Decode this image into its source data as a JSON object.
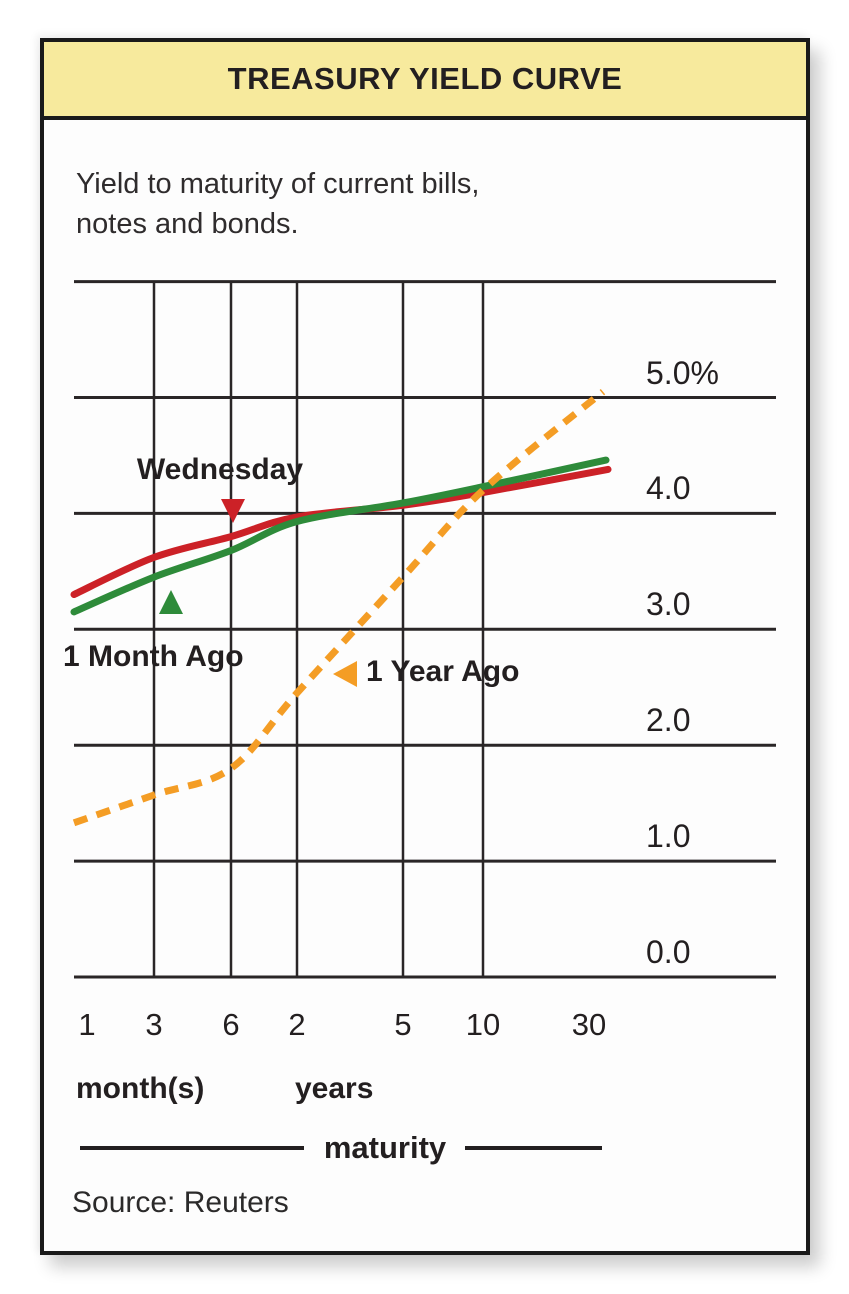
{
  "chart_data": {
    "type": "line",
    "title": "TREASURY YIELD CURVE",
    "subtitle_lines": [
      "Yield to maturity of current bills,",
      "notes and bonds."
    ],
    "x_axis": {
      "title": "maturity",
      "ticks": [
        {
          "label": "1",
          "term": "1 month",
          "group": "months"
        },
        {
          "label": "3",
          "term": "3 months",
          "group": "months"
        },
        {
          "label": "6",
          "term": "6 months",
          "group": "months"
        },
        {
          "label": "2",
          "term": "2 years",
          "group": "years"
        },
        {
          "label": "5",
          "term": "5 years",
          "group": "years"
        },
        {
          "label": "10",
          "term": "10 years",
          "group": "years"
        },
        {
          "label": "30",
          "term": "30 years",
          "group": "years"
        }
      ],
      "unit_labels": [
        {
          "text": "month(s)"
        },
        {
          "text": "years"
        }
      ]
    },
    "y_axis": {
      "unit": "percent yield",
      "range": [
        0.0,
        6.0
      ],
      "ticks": [
        {
          "value": 0,
          "label": "0.0"
        },
        {
          "value": 1,
          "label": "1.0"
        },
        {
          "value": 2,
          "label": "2.0"
        },
        {
          "value": 3,
          "label": "3.0"
        },
        {
          "value": 4,
          "label": "4.0"
        },
        {
          "value": 5,
          "label": "5.0%"
        }
      ]
    },
    "grid": {
      "horizontal": true,
      "vertical_on_ticks": [
        "3",
        "6",
        "2",
        "5",
        "10"
      ],
      "color": "#2a2627"
    },
    "series": [
      {
        "name": "Wednesday",
        "color": "#cc2127",
        "line_style": "solid",
        "marker": "triangle-down",
        "values": [
          3.3,
          3.62,
          3.8,
          3.97,
          4.07,
          4.18,
          4.38
        ]
      },
      {
        "name": "1 Month Ago",
        "color": "#2e8b3a",
        "line_style": "solid",
        "marker": "triangle-up",
        "values": [
          3.15,
          3.45,
          3.68,
          3.93,
          4.09,
          4.23,
          4.46
        ]
      },
      {
        "name": "1 Year Ago",
        "color": "#f49d25",
        "line_style": "dashed",
        "marker": "triangle-left",
        "values": [
          1.33,
          1.57,
          1.8,
          2.45,
          3.45,
          4.2,
          5.05
        ]
      }
    ],
    "source": "Source: Reuters",
    "colors": {
      "header_background": "#f7ea9d",
      "border": "#1a1a1a",
      "text": "#231f20"
    }
  }
}
